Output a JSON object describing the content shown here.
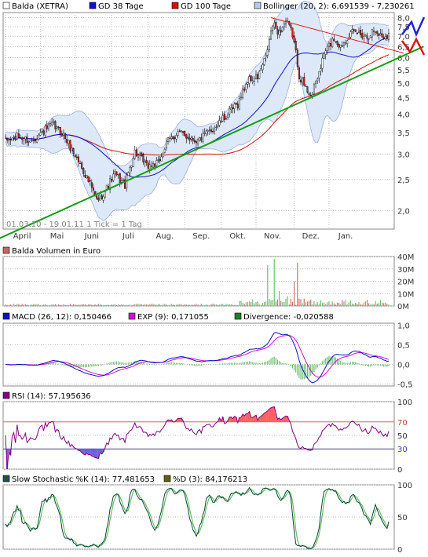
{
  "chart_data": [
    {
      "type": "candlestick",
      "panel": "price",
      "legend": [
        {
          "label": "Balda (XETRA)",
          "color": "#ffffff"
        },
        {
          "label": "GD 38 Tage",
          "color": "#1010c8"
        },
        {
          "label": "GD 100 Tage",
          "color": "#d01010"
        },
        {
          "label": "Bollinger (20, 2): 6,691539 - 7,230261",
          "color": "#b8c8ec"
        }
      ],
      "note": "01.03.10 - 19.01.11   1 Tick = 1 Tag",
      "months": [
        "April",
        "Mai",
        "Juni",
        "Juli",
        "Aug.",
        "Sep.",
        "Okt.",
        "Nov.",
        "Dez.",
        "Jan."
      ],
      "yticks": [
        "8,0",
        "7,5",
        "7,0",
        "6,5",
        "6,0",
        "5,5",
        "5,0",
        "4,5",
        "4,0",
        "3,5",
        "3,0",
        "2,5",
        "2,0"
      ],
      "ytick_values": [
        8.0,
        7.5,
        7.0,
        6.5,
        6.0,
        5.5,
        5.0,
        4.5,
        4.0,
        3.5,
        3.0,
        2.5,
        2.0
      ],
      "yscale": "log",
      "ylim": [
        1.75,
        8.3
      ],
      "x_days": 232,
      "close_anchors": [
        [
          0,
          3.3
        ],
        [
          8,
          3.4
        ],
        [
          15,
          3.3
        ],
        [
          22,
          3.5
        ],
        [
          28,
          3.7
        ],
        [
          34,
          3.5
        ],
        [
          40,
          3.1
        ],
        [
          48,
          2.6
        ],
        [
          55,
          2.15
        ],
        [
          60,
          2.3
        ],
        [
          66,
          2.6
        ],
        [
          72,
          2.4
        ],
        [
          78,
          3.05
        ],
        [
          85,
          2.75
        ],
        [
          92,
          2.8
        ],
        [
          98,
          3.3
        ],
        [
          104,
          3.5
        ],
        [
          110,
          3.4
        ],
        [
          116,
          3.3
        ],
        [
          122,
          3.5
        ],
        [
          128,
          3.7
        ],
        [
          134,
          4.0
        ],
        [
          140,
          4.3
        ],
        [
          146,
          5.1
        ],
        [
          152,
          5.2
        ],
        [
          157,
          6.0
        ],
        [
          161,
          7.6
        ],
        [
          165,
          7.2
        ],
        [
          169,
          7.8
        ],
        [
          173,
          7.1
        ],
        [
          177,
          5.3
        ],
        [
          181,
          4.8
        ],
        [
          185,
          4.6
        ],
        [
          189,
          5.4
        ],
        [
          193,
          6.3
        ],
        [
          198,
          6.9
        ],
        [
          202,
          6.5
        ],
        [
          207,
          7.1
        ],
        [
          212,
          7.2
        ],
        [
          218,
          7.0
        ],
        [
          222,
          7.3
        ],
        [
          227,
          7.0
        ],
        [
          231,
          7.1
        ]
      ],
      "trendlines": [
        {
          "name": "support",
          "color": "#10a010",
          "points": [
            [
              -30,
              1.42
            ],
            [
              252,
              6.5
            ]
          ]
        },
        {
          "name": "resistance",
          "color": "#e01818",
          "points": [
            [
              160,
              8.0
            ],
            [
              240,
              6.2
            ]
          ]
        }
      ]
    },
    {
      "type": "bar",
      "panel": "volume",
      "legend": [
        {
          "label": "Balda Volumen in Euro",
          "color": "#c86464"
        }
      ],
      "yticks": [
        "40M",
        "30M",
        "20M",
        "10M",
        "0M"
      ],
      "ytick_values": [
        40,
        30,
        20,
        10,
        0
      ],
      "ylim": [
        0,
        40
      ]
    },
    {
      "type": "line",
      "panel": "macd",
      "legend": [
        {
          "label": "MACD (26, 12): 0,150466",
          "color": "#1010c8"
        },
        {
          "label": "EXP (9): 0,171055",
          "color": "#d010d0"
        },
        {
          "label": "Divergence: -0,020588",
          "color": "#208020"
        }
      ],
      "yticks": [
        "1,0",
        "0,5",
        "0,0",
        "-0,5"
      ],
      "ytick_values": [
        1.0,
        0.5,
        0.0,
        -0.5
      ],
      "ylim": [
        -0.55,
        1.05
      ]
    },
    {
      "type": "line",
      "panel": "rsi",
      "legend": [
        {
          "label": "RSI (14): 57,195636",
          "color": "#800080"
        }
      ],
      "yticks": [
        "100",
        "70",
        "50",
        "30",
        "0"
      ],
      "ytick_values": [
        100,
        70,
        50,
        30,
        0
      ],
      "ylim": [
        0,
        100
      ],
      "levels": [
        70,
        30
      ]
    },
    {
      "type": "line",
      "panel": "stochastic",
      "legend": [
        {
          "label": "Slow Stochastic %K (14): 77,481653",
          "color": "#205050"
        },
        {
          "label": "%D (3): 84,176213",
          "color": "#606010"
        }
      ],
      "yticks": [
        "100",
        "50",
        "0"
      ],
      "ytick_values": [
        100,
        50,
        0
      ],
      "ylim": [
        0,
        100
      ]
    }
  ],
  "colors": {
    "up": "#ffffff",
    "down": "#cc2020",
    "wick": "#000000",
    "band": "#dde8f8",
    "band_line": "#9cb0e0",
    "ma38": "#1010c8",
    "ma100": "#d01010",
    "grid": "#c0c0c0",
    "volume": "#d07070",
    "volume_up": "#70c070",
    "rsi_fill": "#ff6060",
    "rsi_low": "#7060e0",
    "stoch_k": "#104040",
    "stoch_d": "#60c060"
  }
}
